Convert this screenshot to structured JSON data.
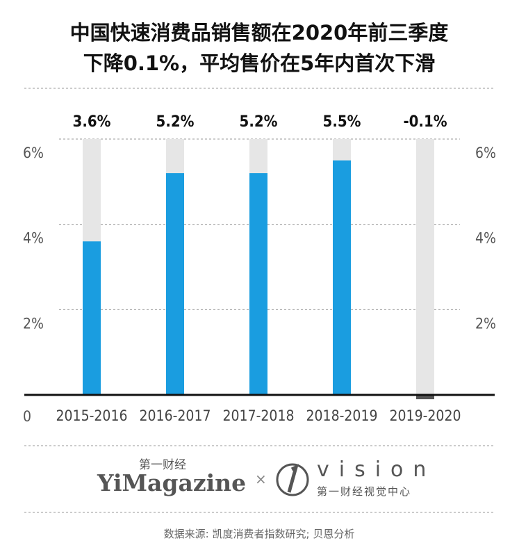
{
  "chart_data": {
    "type": "bar",
    "title": [
      "中国快速消费品销售额在2020年前三季度",
      "下降0.1%，平均售价在5年内首次下滑"
    ],
    "categories": [
      "2015-2016",
      "2016-2017",
      "2017-2018",
      "2018-2019",
      "2019-2020"
    ],
    "values": [
      3.6,
      5.2,
      5.2,
      5.5,
      -0.1
    ],
    "value_labels": [
      "3.6%",
      "5.2%",
      "5.2%",
      "5.5%",
      "-0.1%"
    ],
    "color": "#1a9de0",
    "negative_color": "#555555",
    "track_color": "#e6e6e6",
    "ylim": [
      0,
      6
    ],
    "yticks": [
      0,
      {
        "value": 2,
        "label": "2%"
      },
      {
        "value": 4,
        "label": "4%"
      },
      {
        "value": 6,
        "label": "6%"
      }
    ],
    "grid": true
  },
  "branding": {
    "left_small": "第一财经",
    "left_main": "YiMagazine",
    "separator": "×",
    "right_main": "vision",
    "right_small": "第一财经视觉中心"
  },
  "source": "数据来源: 凯度消费者指数研究; 贝恩分析"
}
